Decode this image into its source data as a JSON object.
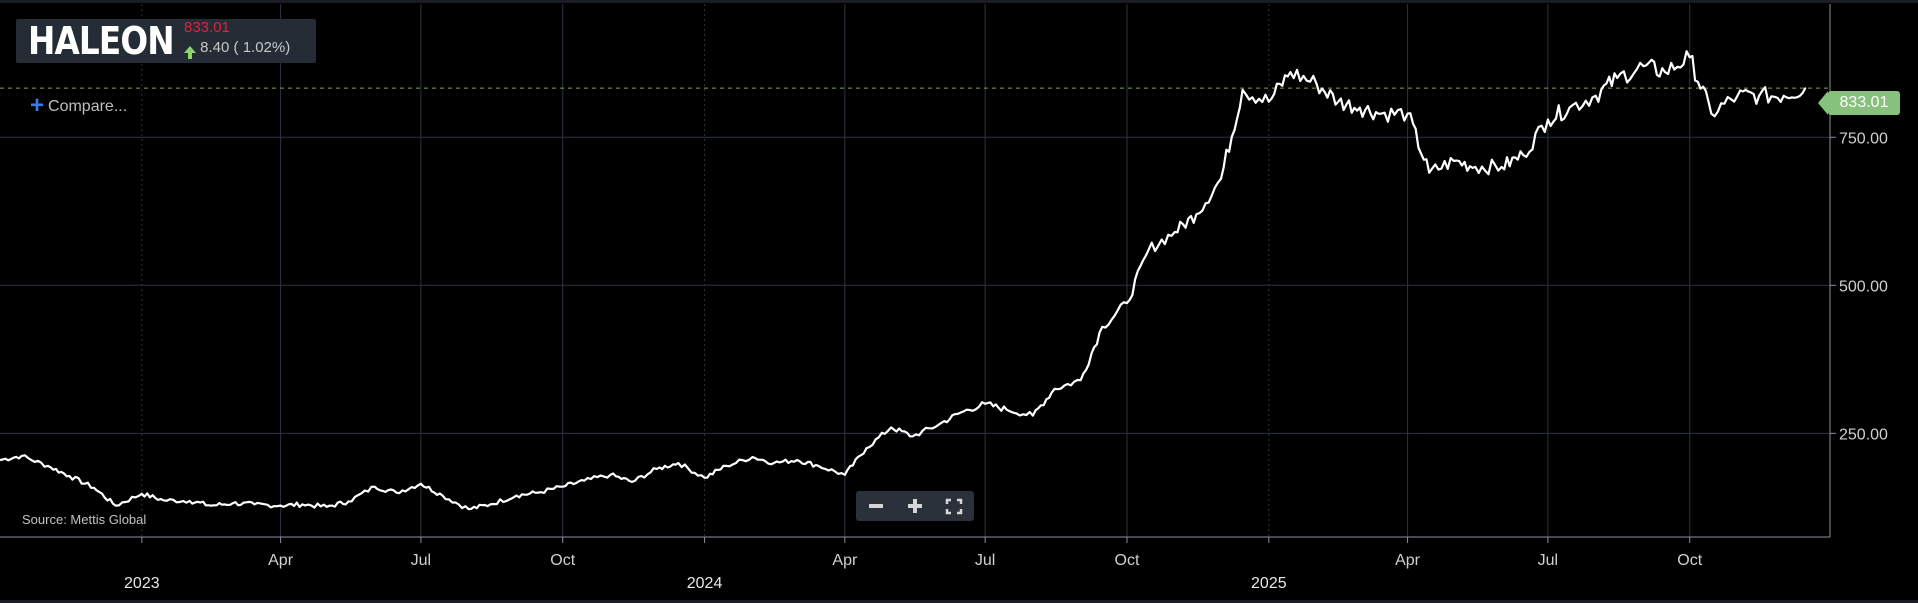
{
  "ticker": {
    "name": "HALEON",
    "price": "833.01",
    "change": "8.40 ( 1.02%)"
  },
  "compare_label": "Compare...",
  "source": "Source: Mettis Global",
  "price_tag": "833.01",
  "colors": {
    "background": "#000000",
    "grid": "#2b3342",
    "line": "#ffffff",
    "price_red": "#e0213f",
    "up_green": "#8bd36a",
    "tag_green": "#86c27b",
    "dashed_green": "#7ba84a",
    "compare_blue": "#3a7ae8"
  },
  "icons": {
    "change": "up-arrow-icon",
    "compare": "plus-icon",
    "zoom_out": "minus-icon",
    "zoom_in": "plus-icon",
    "fullscreen": "fullscreen-icon"
  },
  "chart_data": {
    "type": "line",
    "series": [
      {
        "x": [
          "2022-10-01",
          "2022-10-15",
          "2022-11-01",
          "2022-11-15",
          "2022-12-01",
          "2022-12-15",
          "2023-01-01",
          "2023-01-15",
          "2023-02-01",
          "2023-02-15",
          "2023-03-01",
          "2023-03-15",
          "2023-04-01",
          "2023-04-15",
          "2023-05-01",
          "2023-05-15",
          "2023-06-01",
          "2023-06-15",
          "2023-07-01",
          "2023-07-15",
          "2023-08-01",
          "2023-08-15",
          "2023-09-01",
          "2023-09-15",
          "2023-10-01",
          "2023-10-15",
          "2023-11-01",
          "2023-11-15",
          "2023-12-01",
          "2023-12-15",
          "2024-01-01",
          "2024-01-15",
          "2024-02-01",
          "2024-02-15",
          "2024-03-01",
          "2024-03-15",
          "2024-04-01",
          "2024-04-15",
          "2024-05-01",
          "2024-05-15",
          "2024-06-01",
          "2024-06-15",
          "2024-07-01",
          "2024-07-15",
          "2024-08-01",
          "2024-08-15",
          "2024-09-01",
          "2024-09-15",
          "2024-10-01",
          "2024-10-15",
          "2024-11-01",
          "2024-11-15",
          "2024-12-01",
          "2024-12-15",
          "2025-01-01",
          "2025-01-15",
          "2025-02-01",
          "2025-02-15",
          "2025-03-01",
          "2025-03-15",
          "2025-04-01",
          "2025-04-15",
          "2025-05-01",
          "2025-05-15",
          "2025-06-01",
          "2025-06-15",
          "2025-07-01",
          "2025-07-15",
          "2025-08-01",
          "2025-08-15",
          "2025-09-01",
          "2025-09-15",
          "2025-10-01",
          "2025-10-15",
          "2025-11-01",
          "2025-11-15",
          "2025-12-01",
          "2025-12-15"
        ],
        "values": [
          205,
          212,
          195,
          178,
          158,
          128,
          148,
          137,
          136,
          128,
          132,
          130,
          128,
          130,
          126,
          135,
          160,
          150,
          165,
          145,
          122,
          130,
          145,
          150,
          160,
          170,
          180,
          168,
          190,
          200,
          175,
          195,
          210,
          200,
          205,
          195,
          180,
          225,
          260,
          245,
          265,
          285,
          300,
          290,
          280,
          325,
          340,
          430,
          470,
          560,
          590,
          620,
          680,
          830,
          810,
          860,
          840,
          810,
          800,
          790,
          790,
          690,
          710,
          700,
          700,
          720,
          780,
          800,
          820,
          850,
          870,
          860,
          885,
          790,
          820,
          820,
          820,
          833
        ]
      }
    ],
    "y_ticks": [
      "250.00",
      "500.00",
      "750.00"
    ],
    "x_month_ticks": [
      "Apr",
      "Jul",
      "Oct",
      "Apr",
      "Jul",
      "Oct",
      "Apr",
      "Jul",
      "Oct"
    ],
    "x_year_ticks": [
      "2023",
      "2024",
      "2025"
    ],
    "last_value": 833.01,
    "ylim": [
      75,
      975
    ],
    "xlim": [
      "2022-10-01",
      "2025-12-31"
    ],
    "grid": true,
    "legend": "none"
  }
}
